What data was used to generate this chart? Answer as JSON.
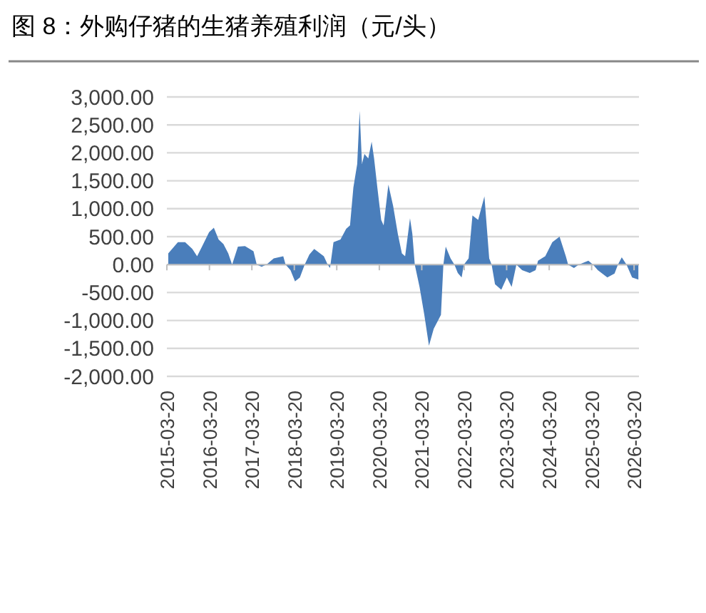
{
  "chart_data": {
    "type": "area",
    "title": "图 8：外购仔猪的生猪养殖利润（元/头）",
    "x": [
      "2015-04-01",
      "2015-06-23",
      "2015-08-24",
      "2015-10-25",
      "2015-12-05",
      "2016-01-16",
      "2016-03-17",
      "2016-04-27",
      "2016-06-07",
      "2016-07-18",
      "2016-08-29",
      "2016-10-01",
      "2016-11-20",
      "2017-01-20",
      "2017-04-03",
      "2017-05-01",
      "2017-06-12",
      "2017-07-23",
      "2017-09-24",
      "2017-12-15",
      "2018-01-04",
      "2018-02-15",
      "2018-03-26",
      "2018-05-07",
      "2018-06-17",
      "2018-07-28",
      "2018-09-07",
      "2018-11-29",
      "2019-01-01",
      "2019-01-21",
      "2019-02-20",
      "2019-04-21",
      "2019-06-09",
      "2019-07-12",
      "2019-08-10",
      "2019-09-12",
      "2019-10-03",
      "2019-10-23",
      "2019-11-13",
      "2019-12-16",
      "2020-01-14",
      "2020-02-04",
      "2020-03-03",
      "2020-04-05",
      "2020-04-26",
      "2020-06-06",
      "2020-07-17",
      "2020-08-27",
      "2020-09-30",
      "2020-10-28",
      "2020-12-09",
      "2020-12-29",
      "2021-01-19",
      "2021-03-01",
      "2021-04-11",
      "2021-05-21",
      "2021-07-01",
      "2021-09-01",
      "2021-09-22",
      "2021-10-12",
      "2021-11-23",
      "2021-12-26",
      "2022-01-24",
      "2022-02-26",
      "2022-03-17",
      "2022-04-27",
      "2022-05-30",
      "2022-07-18",
      "2022-09-10",
      "2022-10-21",
      "2022-11-11",
      "2022-12-10",
      "2023-02-02",
      "2023-03-22",
      "2023-05-02",
      "2023-06-12",
      "2023-07-31",
      "2023-10-05",
      "2023-11-24",
      "2023-12-15",
      "2024-02-15",
      "2024-04-16",
      "2024-06-17",
      "2024-08-10",
      "2024-08-30",
      "2024-10-19",
      "2024-11-29",
      "2025-02-20",
      "2025-04-01",
      "2025-05-12",
      "2025-08-02",
      "2025-10-03",
      "2025-11-01",
      "2025-12-04",
      "2026-01-14",
      "2026-03-03",
      "2026-04-26"
    ],
    "series": [
      {
        "color": "#4a7ebb",
        "values": [
          200,
          400,
          400,
          280,
          150,
          320,
          580,
          660,
          450,
          370,
          200,
          0,
          320,
          330,
          240,
          0,
          -40,
          0,
          110,
          150,
          0,
          -100,
          -300,
          -230,
          0,
          180,
          280,
          150,
          0,
          -60,
          400,
          450,
          640,
          700,
          1380,
          1800,
          2750,
          1800,
          1980,
          1900,
          2200,
          1900,
          1380,
          800,
          700,
          1430,
          1050,
          540,
          200,
          150,
          830,
          550,
          0,
          -400,
          -900,
          -1450,
          -1150,
          -900,
          0,
          320,
          110,
          0,
          -150,
          -230,
          0,
          110,
          880,
          800,
          1220,
          110,
          0,
          -350,
          -450,
          -230,
          -400,
          0,
          -100,
          -150,
          -100,
          70,
          150,
          400,
          500,
          150,
          0,
          -60,
          0,
          70,
          0,
          -100,
          -230,
          -160,
          0,
          130,
          0,
          -230,
          -270
        ]
      }
    ],
    "xlim": [
      "2015-03-20",
      "2026-05-01"
    ],
    "xticks": [
      "2015-03-20",
      "2016-03-20",
      "2017-03-20",
      "2018-03-20",
      "2019-03-20",
      "2020-03-20",
      "2021-03-20",
      "2022-03-20",
      "2023-03-20",
      "2024-03-20",
      "2025-03-20",
      "2026-03-20"
    ],
    "ylim": [
      -2000,
      3000
    ],
    "yticks": [
      {
        "value": -2000,
        "label": "-2,000.00"
      },
      {
        "value": -1500,
        "label": "-1,500.00"
      },
      {
        "value": -1000,
        "label": "-1,000.00"
      },
      {
        "value": -500,
        "label": "-500.00"
      },
      {
        "value": 0,
        "label": "0.00"
      },
      {
        "value": 500,
        "label": "500.00"
      },
      {
        "value": 1000,
        "label": "1,000.00"
      },
      {
        "value": 1500,
        "label": "1,500.00"
      },
      {
        "value": 2000,
        "label": "2,000.00"
      },
      {
        "value": 2500,
        "label": "2,500.00"
      },
      {
        "value": 3000,
        "label": "3,000.00"
      }
    ],
    "grid": "y",
    "ref_lines": [
      {
        "axis": "y",
        "value": 0,
        "color": "#bfbfbf"
      }
    ]
  }
}
